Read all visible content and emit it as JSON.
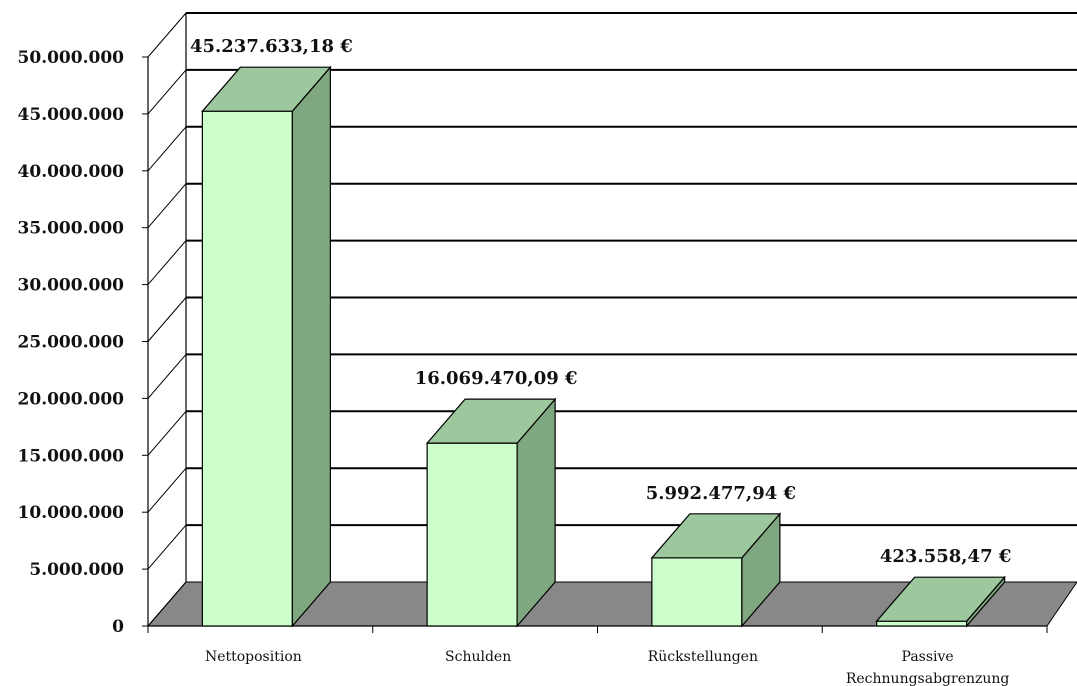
{
  "chart_data": {
    "type": "bar",
    "style": "3d",
    "categories": [
      "Nettoposition",
      "Schulden",
      "Rückstellungen",
      "Passive Rechnungsabgrenzung"
    ],
    "category_labels": [
      [
        "Nettoposition"
      ],
      [
        "Schulden"
      ],
      [
        "Rückstellungen"
      ],
      [
        "Passive",
        "Rechnungsabgrenzung"
      ]
    ],
    "values": [
      45237633.18,
      16069470.09,
      5992477.94,
      423558.47
    ],
    "data_labels": [
      "45.237.633,18 €",
      "16.069.470,09 €",
      "5.992.477,94 €",
      "423.558,47 €"
    ],
    "ylim": [
      0,
      50000000
    ],
    "yticks": [
      0,
      5000000,
      10000000,
      15000000,
      20000000,
      25000000,
      30000000,
      35000000,
      40000000,
      45000000,
      50000000
    ],
    "ytick_labels": [
      "0",
      "5.000.000",
      "10.000.000",
      "15.000.000",
      "20.000.000",
      "25.000.000",
      "30.000.000",
      "35.000.000",
      "40.000.000",
      "45.000.000",
      "50.000.000"
    ],
    "grid": true,
    "title": "",
    "xlabel": "",
    "ylabel": "",
    "colors": {
      "bar_front": "#ccffcc",
      "bar_top": "#9dc89d",
      "bar_side": "#80a880",
      "floor": "#888888",
      "gridline": "#000000"
    }
  }
}
